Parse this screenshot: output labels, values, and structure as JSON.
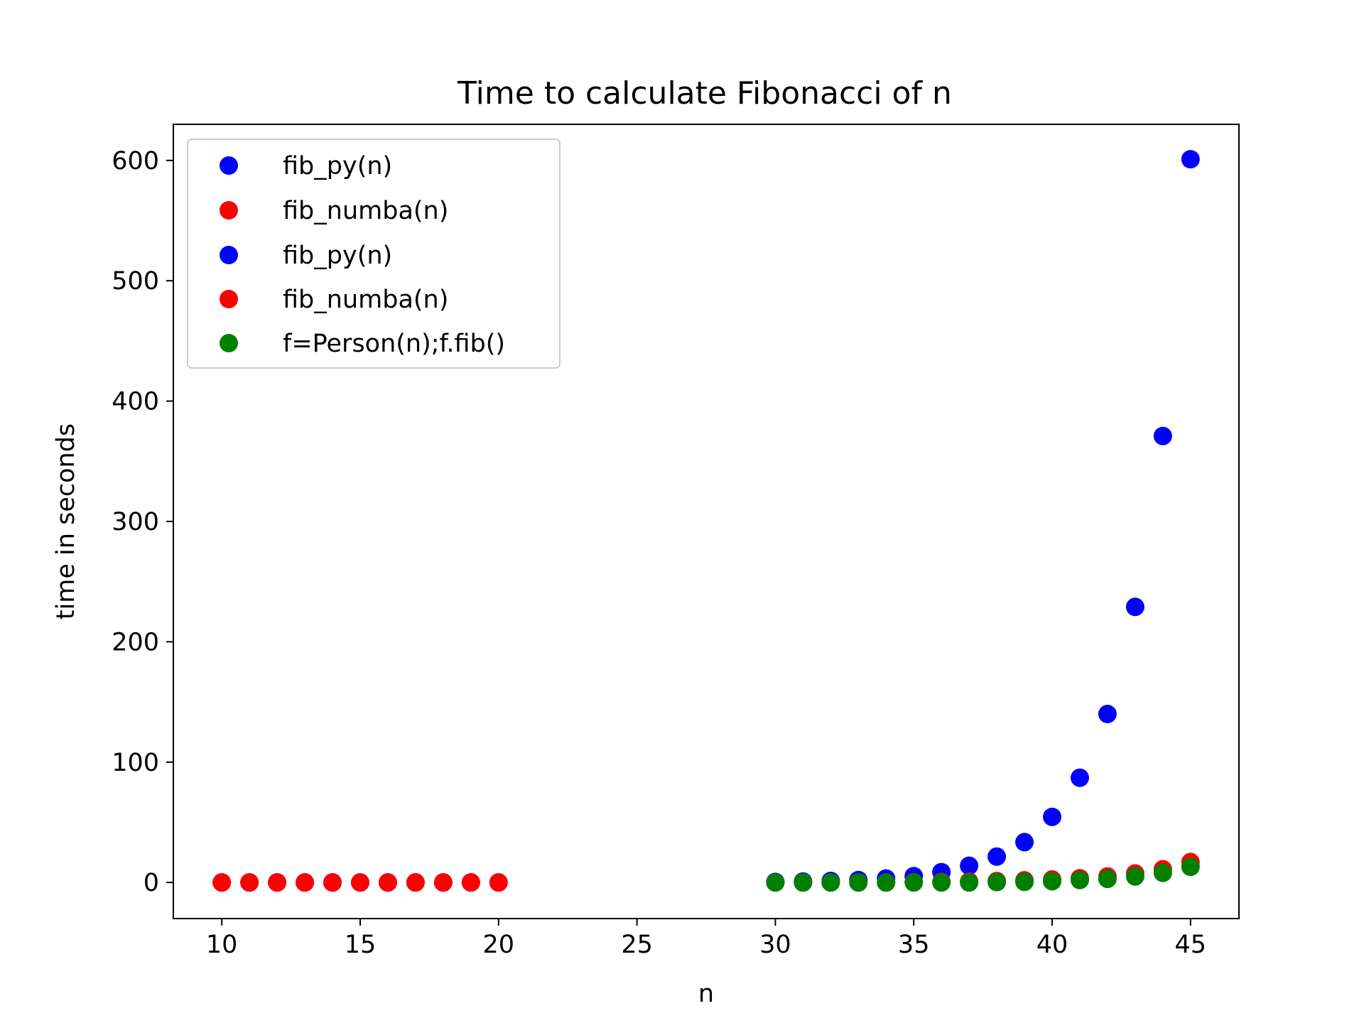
{
  "chart_data": {
    "type": "scatter",
    "title": "Time to calculate Fibonacci of n",
    "xlabel": "n",
    "ylabel": "time in seconds",
    "xlim": [
      8.25,
      46.75
    ],
    "ylim": [
      -30,
      630
    ],
    "xticks": [
      10,
      15,
      20,
      25,
      30,
      35,
      40,
      45
    ],
    "yticks": [
      0,
      100,
      200,
      300,
      400,
      500,
      600
    ],
    "grid": false,
    "legend_position": "upper left",
    "series": [
      {
        "name": "fib_py(n)",
        "color": "#0000ff",
        "x": [
          10,
          11,
          12,
          13,
          14,
          15,
          16,
          17,
          18,
          19,
          20
        ],
        "y": [
          0,
          0,
          0,
          0,
          0,
          0,
          0,
          0,
          0,
          0,
          0
        ]
      },
      {
        "name": "fib_numba(n)",
        "color": "#ff0000",
        "x": [
          10,
          11,
          12,
          13,
          14,
          15,
          16,
          17,
          18,
          19,
          20
        ],
        "y": [
          0,
          0,
          0,
          0,
          0,
          0,
          0,
          0,
          0,
          0,
          0
        ]
      },
      {
        "name": "fib_py(n)",
        "color": "#0000ff",
        "x": [
          30,
          31,
          32,
          33,
          34,
          35,
          36,
          37,
          38,
          39,
          40,
          41,
          42,
          43,
          44,
          45
        ],
        "y": [
          0.5,
          0.8,
          1.3,
          2,
          3.3,
          5.3,
          8.6,
          13.9,
          21.5,
          33.5,
          54.5,
          87,
          140,
          229,
          371,
          601
        ]
      },
      {
        "name": "fib_numba(n)",
        "color": "#ff0000",
        "x": [
          30,
          31,
          32,
          33,
          34,
          35,
          36,
          37,
          38,
          39,
          40,
          41,
          42,
          43,
          44,
          45
        ],
        "y": [
          0,
          0,
          0,
          0,
          0,
          0.3,
          0.5,
          0.8,
          1.2,
          1.8,
          2.5,
          3.5,
          5,
          7.5,
          11,
          17
        ]
      },
      {
        "name": "f=Person(n);f.fib()",
        "color": "#008000",
        "x": [
          30,
          31,
          32,
          33,
          34,
          35,
          36,
          37,
          38,
          39,
          40,
          41,
          42,
          43,
          44,
          45
        ],
        "y": [
          0,
          0,
          0,
          0,
          0,
          0,
          0,
          0,
          0.3,
          0.5,
          1,
          2,
          3,
          5,
          8,
          13
        ]
      }
    ]
  }
}
